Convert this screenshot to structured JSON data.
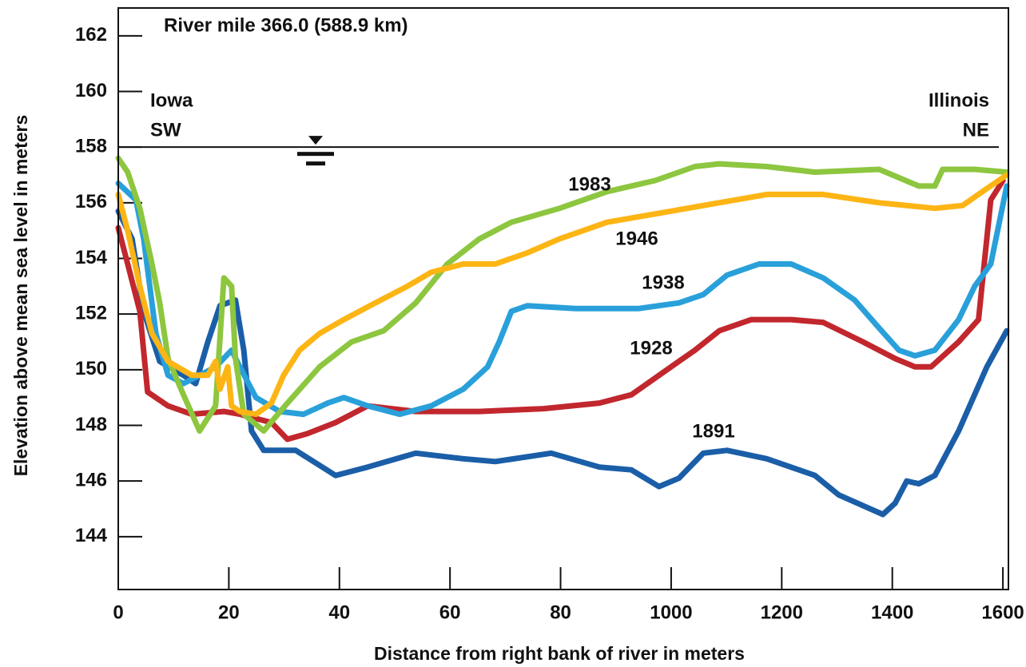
{
  "chart_data": {
    "type": "line",
    "title": "River mile 366.0 (588.9 km)",
    "xlabel": "Distance from right bank of river in meters",
    "ylabel": "Elevation above mean sea level in meters",
    "annotations": {
      "left_bank": [
        "Iowa",
        "SW"
      ],
      "right_bank": [
        "Illinois",
        "NE"
      ]
    },
    "water_level": 158,
    "xlim": [
      0,
      1610
    ],
    "ylim": [
      142.1,
      163
    ],
    "xticks": [
      0,
      {
        "value": 200,
        "label": "20"
      },
      {
        "value": 400,
        "label": "40"
      },
      {
        "value": 600,
        "label": "60"
      },
      {
        "value": 800,
        "label": "80"
      },
      1000,
      1200,
      1400,
      1600
    ],
    "yticks": [
      144,
      146,
      148,
      150,
      152,
      154,
      156,
      158,
      160,
      162
    ],
    "grid": false,
    "series": [
      {
        "name": "1891",
        "color": "#1b5ea8",
        "x": [
          0,
          25,
          46,
          75,
          118,
          140,
          162,
          184,
          212,
          227,
          241,
          263,
          321,
          393,
          451,
          538,
          624,
          682,
          783,
          870,
          928,
          978,
          1014,
          1058,
          1101,
          1173,
          1260,
          1303,
          1383,
          1405,
          1426,
          1448,
          1477,
          1520,
          1571,
          1607
        ],
        "values": [
          155.7,
          154.7,
          152.1,
          150.3,
          149.8,
          149.5,
          151.0,
          152.3,
          152.5,
          150.7,
          147.8,
          147.1,
          147.1,
          146.2,
          146.5,
          147.0,
          146.8,
          146.7,
          147.0,
          146.5,
          146.4,
          145.8,
          146.1,
          147.0,
          147.1,
          146.8,
          146.2,
          145.5,
          144.8,
          145.2,
          146.0,
          145.9,
          146.2,
          147.8,
          150.1,
          151.4
        ]
      },
      {
        "name": "1928",
        "color": "#c1272d",
        "x": [
          0,
          17,
          39,
          53,
          90,
          133,
          191,
          220,
          277,
          306,
          342,
          393,
          451,
          538,
          653,
          769,
          870,
          928,
          971,
          1014,
          1043,
          1087,
          1145,
          1217,
          1275,
          1347,
          1405,
          1441,
          1470,
          1520,
          1556,
          1578,
          1600
        ],
        "values": [
          155.1,
          153.8,
          152.1,
          149.2,
          148.7,
          148.4,
          148.5,
          148.4,
          148.1,
          147.5,
          147.7,
          148.1,
          148.7,
          148.5,
          148.5,
          148.6,
          148.8,
          149.1,
          149.7,
          150.3,
          150.7,
          151.4,
          151.8,
          151.8,
          151.7,
          151.0,
          150.4,
          150.1,
          150.1,
          151.0,
          151.8,
          156.1,
          156.8
        ]
      },
      {
        "name": "1938",
        "color": "#29a0da",
        "x": [
          0,
          32,
          46,
          68,
          90,
          118,
          147,
          176,
          205,
          220,
          249,
          292,
          335,
          379,
          408,
          451,
          509,
          566,
          624,
          668,
          689,
          711,
          740,
          827,
          942,
          1014,
          1058,
          1101,
          1159,
          1217,
          1275,
          1332,
          1376,
          1412,
          1441,
          1477,
          1520,
          1549,
          1578,
          1607
        ],
        "values": [
          156.7,
          156.1,
          154.7,
          151.3,
          149.8,
          149.5,
          149.8,
          150.1,
          150.7,
          150.1,
          149.0,
          148.5,
          148.4,
          148.8,
          149.0,
          148.7,
          148.4,
          148.7,
          149.3,
          150.1,
          151.0,
          152.1,
          152.3,
          152.2,
          152.2,
          152.4,
          152.7,
          153.4,
          153.8,
          153.8,
          153.3,
          152.5,
          151.5,
          150.7,
          150.5,
          150.7,
          151.8,
          153.0,
          153.8,
          156.6
        ]
      },
      {
        "name": "1983",
        "color": "#8dc63f",
        "x": [
          0,
          17,
          39,
          61,
          75,
          90,
          118,
          147,
          176,
          191,
          205,
          212,
          227,
          263,
          306,
          364,
          422,
          480,
          538,
          595,
          653,
          711,
          798,
          884,
          971,
          1043,
          1087,
          1173,
          1260,
          1376,
          1448,
          1477,
          1491,
          1549,
          1607
        ],
        "values": [
          157.6,
          157.1,
          155.8,
          153.8,
          152.4,
          150.4,
          149.1,
          147.8,
          148.7,
          153.3,
          153.0,
          150.4,
          148.4,
          147.8,
          148.8,
          150.1,
          151.0,
          151.4,
          152.4,
          153.8,
          154.7,
          155.3,
          155.8,
          156.4,
          156.8,
          157.3,
          157.4,
          157.3,
          157.1,
          157.2,
          156.6,
          156.6,
          157.2,
          157.2,
          157.1
        ]
      },
      {
        "name": "1946",
        "color": "#fdb515",
        "x": [
          0,
          17,
          39,
          61,
          90,
          133,
          162,
          176,
          184,
          198,
          205,
          220,
          249,
          277,
          299,
          328,
          364,
          408,
          465,
          523,
          566,
          624,
          682,
          740,
          798,
          884,
          971,
          1087,
          1173,
          1275,
          1376,
          1477,
          1527,
          1563,
          1607
        ],
        "values": [
          156.3,
          155.0,
          153.0,
          151.3,
          150.3,
          149.8,
          149.8,
          150.3,
          149.3,
          150.1,
          148.7,
          148.5,
          148.4,
          148.8,
          149.8,
          150.7,
          151.3,
          151.8,
          152.4,
          153.0,
          153.5,
          153.8,
          153.8,
          154.2,
          154.7,
          155.3,
          155.6,
          156.0,
          156.3,
          156.3,
          156.0,
          155.8,
          155.9,
          156.4,
          157.0
        ]
      }
    ]
  }
}
